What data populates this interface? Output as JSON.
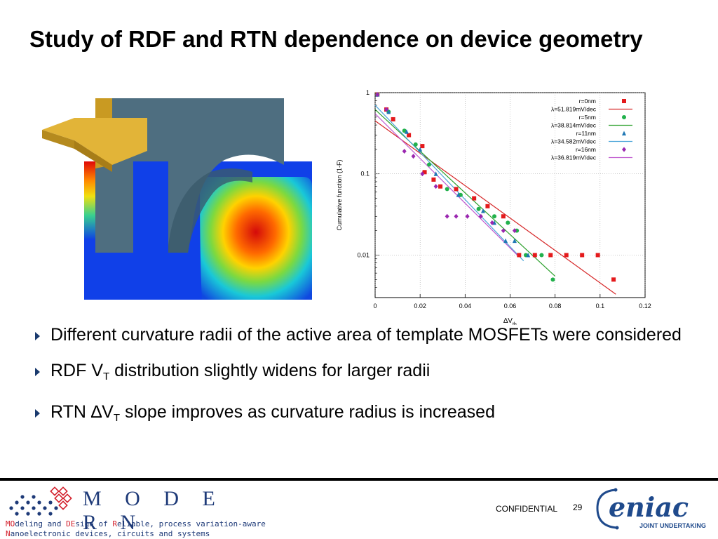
{
  "slide": {
    "title": "Study of RDF and RTN dependence on device geometry",
    "bullets": [
      {
        "text": "Different curvature radii of the active area of template MOSFETs were considered"
      },
      {
        "pre": "RDF V",
        "sub": "T",
        "post": " distribution slightly widens for larger radii"
      },
      {
        "pre": "RTN ∆V",
        "sub": "T",
        "post": " slope improves as curvature radius is increased"
      }
    ]
  },
  "footer": {
    "confidential": "CONFIDENTIAL",
    "page_number": "29",
    "modern_logo_word": "M O D E R N",
    "modern_tagline_1_a": "MO",
    "modern_tagline_1_b": "deling and ",
    "modern_tagline_1_c": "DE",
    "modern_tagline_1_d": "sign of ",
    "modern_tagline_1_e": "R",
    "modern_tagline_1_f": "eliable, process variation-aware",
    "modern_tagline_2_a": "N",
    "modern_tagline_2_b": "anoelectronic devices, circuits and systems",
    "eniac_logo_word": "eniac",
    "eniac_logo_sub": "JOINT UNDERTAKING",
    "colors": {
      "modern_blue": "#1e3a78",
      "modern_red": "#d21e2a",
      "eniac_blue": "#1f4a8c"
    }
  },
  "chart_data": {
    "type": "scatter",
    "ylabel": "Cumulative function (1-F)",
    "xlabel_main": "∆V",
    "xlabel_sub": "th",
    "xlim": [
      0,
      0.12
    ],
    "ylim": [
      0.003,
      1
    ],
    "yscale": "log",
    "grid": true,
    "legend_position": "top-right",
    "x_ticks": [
      {
        "value": 0,
        "label": "0"
      },
      {
        "value": 0.02,
        "label": "0.02"
      },
      {
        "value": 0.04,
        "label": "0.04"
      },
      {
        "value": 0.06,
        "label": "0.06"
      },
      {
        "value": 0.08,
        "label": "0.08"
      },
      {
        "value": 0.1,
        "label": "0.1"
      },
      {
        "value": 0.12,
        "label": "0.12"
      }
    ],
    "y_ticks": [
      {
        "value": 1,
        "label": "1"
      },
      {
        "value": 0.1,
        "label": "0.1"
      },
      {
        "value": 0.01,
        "label": "0.01"
      }
    ],
    "series": [
      {
        "name": "r=0nm",
        "marker": "square",
        "color": "#e41a1c",
        "points": [
          [
            0.001,
            0.95
          ],
          [
            0.005,
            0.62
          ],
          [
            0.008,
            0.47
          ],
          [
            0.015,
            0.3
          ],
          [
            0.021,
            0.22
          ],
          [
            0.022,
            0.105
          ],
          [
            0.026,
            0.085
          ],
          [
            0.029,
            0.07
          ],
          [
            0.036,
            0.065
          ],
          [
            0.044,
            0.05
          ],
          [
            0.05,
            0.04
          ],
          [
            0.057,
            0.03
          ],
          [
            0.064,
            0.01
          ],
          [
            0.071,
            0.01
          ],
          [
            0.078,
            0.01
          ],
          [
            0.085,
            0.01
          ],
          [
            0.092,
            0.01
          ],
          [
            0.099,
            0.01
          ],
          [
            0.106,
            0.005
          ]
        ],
        "fit": {
          "name": "λ=51.819mV/dec",
          "color": "#d62728",
          "from": [
            0,
            0.45
          ],
          "to": [
            0.107,
            0.0033
          ]
        }
      },
      {
        "name": "r=5nm",
        "marker": "circle",
        "color": "#22b14c",
        "points": [
          [
            0.001,
            0.95
          ],
          [
            0.006,
            0.58
          ],
          [
            0.013,
            0.34
          ],
          [
            0.018,
            0.23
          ],
          [
            0.024,
            0.13
          ],
          [
            0.032,
            0.065
          ],
          [
            0.038,
            0.055
          ],
          [
            0.046,
            0.037
          ],
          [
            0.053,
            0.03
          ],
          [
            0.059,
            0.025
          ],
          [
            0.063,
            0.02
          ],
          [
            0.067,
            0.01
          ],
          [
            0.074,
            0.01
          ],
          [
            0.079,
            0.005
          ]
        ],
        "fit": {
          "name": "λ=38.814mV/dec",
          "color": "#2ca02c",
          "from": [
            0,
            0.62
          ],
          "to": [
            0.08,
            0.0055
          ]
        }
      },
      {
        "name": "r=11nm",
        "marker": "triangle",
        "color": "#1f77b4",
        "points": [
          [
            0.001,
            0.95
          ],
          [
            0.006,
            0.58
          ],
          [
            0.014,
            0.33
          ],
          [
            0.02,
            0.2
          ],
          [
            0.027,
            0.1
          ],
          [
            0.037,
            0.055
          ],
          [
            0.048,
            0.035
          ],
          [
            0.053,
            0.025
          ],
          [
            0.058,
            0.015
          ],
          [
            0.062,
            0.015
          ],
          [
            0.068,
            0.01
          ]
        ],
        "fit": {
          "name": "λ=34.582mV/dec",
          "color": "#4da6d9",
          "from": [
            0,
            0.7
          ],
          "to": [
            0.066,
            0.0085
          ]
        }
      },
      {
        "name": "r=16nm",
        "marker": "diamond",
        "color": "#9b27b0",
        "points": [
          [
            0.001,
            0.95
          ],
          [
            0.005,
            0.62
          ],
          [
            0.013,
            0.19
          ],
          [
            0.017,
            0.165
          ],
          [
            0.021,
            0.1
          ],
          [
            0.027,
            0.07
          ],
          [
            0.032,
            0.03
          ],
          [
            0.036,
            0.03
          ],
          [
            0.041,
            0.03
          ],
          [
            0.047,
            0.03
          ],
          [
            0.052,
            0.025
          ],
          [
            0.057,
            0.02
          ],
          [
            0.062,
            0.02
          ]
        ],
        "fit": {
          "name": "λ=36.819mV/dec",
          "color": "#c05bd0",
          "from": [
            0,
            0.55
          ],
          "to": [
            0.064,
            0.0095
          ]
        }
      }
    ]
  }
}
